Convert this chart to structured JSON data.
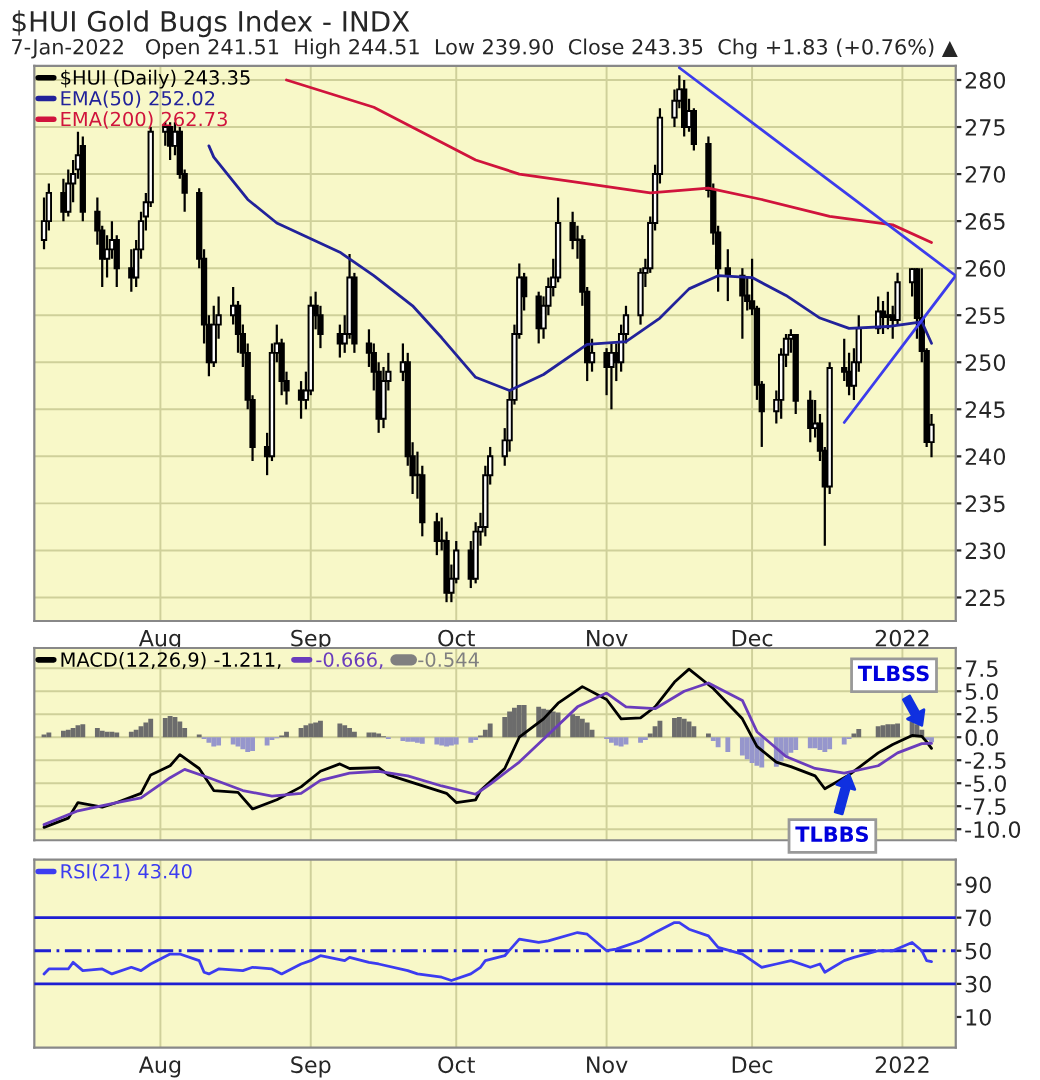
{
  "chart_data": [
    {
      "type": "candlestick",
      "title": "$HUI Gold Bugs Index - INDX",
      "subtitle": "7-Jan-2022   Open 241.51  High 244.51  Low 239.90  Close 243.35  Chg +1.83 (+0.76%) ▲",
      "x": [
        "2021-07-08",
        "2021-07-09",
        "2021-07-12",
        "2021-07-13",
        "2021-07-14",
        "2021-07-15",
        "2021-07-16",
        "2021-07-19",
        "2021-07-20",
        "2021-07-21",
        "2021-07-22",
        "2021-07-23",
        "2021-07-26",
        "2021-07-27",
        "2021-07-28",
        "2021-07-29",
        "2021-07-30",
        "2021-08-02",
        "2021-08-03",
        "2021-08-04",
        "2021-08-05",
        "2021-08-06",
        "2021-08-09",
        "2021-08-10",
        "2021-08-11",
        "2021-08-12",
        "2021-08-13",
        "2021-08-16",
        "2021-08-17",
        "2021-08-18",
        "2021-08-19",
        "2021-08-20",
        "2021-08-23",
        "2021-08-24",
        "2021-08-25",
        "2021-08-26",
        "2021-08-27",
        "2021-08-30",
        "2021-08-31",
        "2021-09-01",
        "2021-09-02",
        "2021-09-03",
        "2021-09-07",
        "2021-09-08",
        "2021-09-09",
        "2021-09-10",
        "2021-09-13",
        "2021-09-14",
        "2021-09-15",
        "2021-09-16",
        "2021-09-17",
        "2021-09-20",
        "2021-09-21",
        "2021-09-22",
        "2021-09-23",
        "2021-09-24",
        "2021-09-27",
        "2021-09-28",
        "2021-09-29",
        "2021-09-30",
        "2021-10-01",
        "2021-10-04",
        "2021-10-05",
        "2021-10-06",
        "2021-10-07",
        "2021-10-08",
        "2021-10-11",
        "2021-10-12",
        "2021-10-13",
        "2021-10-14",
        "2021-10-15",
        "2021-10-18",
        "2021-10-19",
        "2021-10-20",
        "2021-10-21",
        "2021-10-22",
        "2021-10-25",
        "2021-10-26",
        "2021-10-27",
        "2021-10-28",
        "2021-10-29",
        "2021-11-01",
        "2021-11-02",
        "2021-11-03",
        "2021-11-04",
        "2021-11-05",
        "2021-11-08",
        "2021-11-09",
        "2021-11-10",
        "2021-11-11",
        "2021-11-12",
        "2021-11-15",
        "2021-11-16",
        "2021-11-17",
        "2021-11-18",
        "2021-11-19",
        "2021-11-22",
        "2021-11-23",
        "2021-11-24",
        "2021-11-26",
        "2021-11-29",
        "2021-11-30",
        "2021-12-01",
        "2021-12-02",
        "2021-12-03",
        "2021-12-06",
        "2021-12-07",
        "2021-12-08",
        "2021-12-09",
        "2021-12-10",
        "2021-12-13",
        "2021-12-14",
        "2021-12-15",
        "2021-12-16",
        "2021-12-17",
        "2021-12-20",
        "2021-12-21",
        "2021-12-22",
        "2021-12-23",
        "2021-12-27",
        "2021-12-28",
        "2021-12-29",
        "2021-12-30",
        "2021-12-31",
        "2022-01-03",
        "2022-01-04",
        "2022-01-05",
        "2022-01-06",
        "2022-01-07"
      ],
      "series": [
        {
          "name": "$HUI (Daily) 243.35",
          "color": "#000000",
          "ohlc": [
            [
              263,
              267.5,
              262,
              265
            ],
            [
              265,
              269,
              264,
              268
            ],
            [
              268,
              269.5,
              265,
              266
            ],
            [
              266,
              270.5,
              265.5,
              269
            ],
            [
              269,
              271.5,
              267,
              270
            ],
            [
              270.5,
              274.5,
              269.5,
              272
            ],
            [
              273,
              274,
              265,
              266
            ],
            [
              266,
              267.5,
              262.5,
              264
            ],
            [
              264,
              264.5,
              258,
              261
            ],
            [
              261,
              263.5,
              259,
              262
            ],
            [
              262,
              265,
              261,
              263
            ],
            [
              263,
              263.5,
              258,
              260
            ],
            [
              260,
              262,
              257.5,
              259
            ],
            [
              259,
              263,
              258,
              262
            ],
            [
              262,
              266,
              261,
              265
            ],
            [
              265.5,
              268,
              264,
              267
            ],
            [
              267,
              275,
              266.5,
              274.5
            ],
            [
              274.5,
              275.5,
              273,
              275
            ],
            [
              275,
              275.5,
              271.5,
              273
            ],
            [
              273,
              275.5,
              272,
              274.5
            ],
            [
              274.5,
              275,
              269.5,
              270
            ],
            [
              270,
              270.5,
              266,
              268
            ],
            [
              268,
              268.5,
              260,
              261
            ],
            [
              261,
              262,
              252,
              254
            ],
            [
              254,
              255,
              248.5,
              250
            ],
            [
              250,
              256,
              249.5,
              254
            ],
            [
              254,
              257,
              252.5,
              255
            ],
            [
              255,
              258,
              254,
              256
            ],
            [
              256,
              256.5,
              251,
              253
            ],
            [
              253,
              254,
              249.5,
              251
            ],
            [
              251,
              252,
              245,
              246
            ],
            [
              246,
              246.5,
              239.5,
              241
            ],
            [
              241,
              242.5,
              238,
              240
            ],
            [
              240,
              252,
              239.5,
              251
            ],
            [
              251,
              254,
              250,
              252
            ],
            [
              252,
              252.5,
              246.5,
              248
            ],
            [
              248,
              249,
              245.5,
              247
            ],
            [
              247,
              248,
              244,
              246
            ],
            [
              246,
              249,
              245,
              247
            ],
            [
              247,
              257,
              246.5,
              256
            ],
            [
              256,
              257.5,
              253.5,
              255
            ],
            [
              255,
              256,
              251.5,
              253
            ],
            [
              253,
              254,
              250.5,
              252
            ],
            [
              252,
              255,
              251,
              253
            ],
            [
              253,
              261.5,
              252.5,
              259
            ],
            [
              259,
              259.5,
              251,
              252
            ],
            [
              252,
              253.5,
              249.5,
              251
            ],
            [
              251,
              252,
              247,
              249
            ],
            [
              249,
              250,
              242.5,
              244
            ],
            [
              244,
              249.5,
              243,
              248
            ],
            [
              248,
              251,
              247,
              249
            ],
            [
              249,
              252,
              248,
              250
            ],
            [
              250,
              251,
              239,
              240
            ],
            [
              240,
              241.5,
              236,
              238
            ],
            [
              238,
              240.5,
              235.5,
              238
            ],
            [
              238,
              239,
              231.5,
              233
            ],
            [
              233,
              234,
              229.5,
              231
            ],
            [
              231,
              233.5,
              230,
              231
            ],
            [
              231,
              232,
              224.5,
              225.5
            ],
            [
              225.5,
              228.5,
              224.5,
              227
            ],
            [
              227,
              231,
              226.5,
              230
            ],
            [
              230,
              231,
              226,
              227
            ],
            [
              227,
              233,
              226.5,
              232
            ],
            [
              232,
              234,
              230.5,
              232.5
            ],
            [
              232.5,
              239,
              231.5,
              238
            ],
            [
              238,
              241,
              237,
              240
            ],
            [
              240,
              243,
              239,
              241.7
            ],
            [
              241.7,
              247,
              240.5,
              246
            ],
            [
              246,
              254,
              245.5,
              253
            ],
            [
              253,
              260.5,
              252.5,
              259
            ],
            [
              259,
              259.5,
              255.5,
              257
            ],
            [
              257,
              257.5,
              252,
              253.6
            ],
            [
              253.6,
              257,
              252.5,
              256
            ],
            [
              256,
              259,
              255,
              258
            ],
            [
              258,
              261,
              257,
              259
            ],
            [
              259,
              267.5,
              258.5,
              264.8
            ],
            [
              264.8,
              266,
              262,
              263
            ],
            [
              263,
              264.5,
              261,
              263
            ],
            [
              263,
              263.5,
              256,
              257.5
            ],
            [
              257.5,
              258,
              248,
              250
            ],
            [
              250,
              252.5,
              249,
              251
            ],
            [
              251,
              251.5,
              246.5,
              249.5
            ],
            [
              249.5,
              252,
              245,
              251
            ],
            [
              251,
              252,
              248,
              250
            ],
            [
              250,
              254,
              249,
              253
            ],
            [
              253,
              256,
              252,
              255
            ],
            [
              255,
              260,
              254,
              259.5
            ],
            [
              259.5,
              261,
              258,
              260
            ],
            [
              260,
              265.5,
              259.5,
              264.8
            ],
            [
              264.8,
              271,
              264,
              270
            ],
            [
              270,
              277,
              269,
              276
            ],
            [
              276,
              279,
              275,
              277.8
            ],
            [
              277.8,
              280.5,
              277,
              279
            ],
            [
              279,
              280,
              274,
              275
            ],
            [
              275,
              278,
              274.5,
              276.7
            ],
            [
              276.7,
              277,
              272.5,
              273.2
            ],
            [
              273.2,
              274,
              267.5,
              268.3
            ],
            [
              268.3,
              269,
              262.5,
              263.8
            ],
            [
              263.8,
              264.5,
              257.5,
              260
            ],
            [
              260,
              262,
              256.5,
              259.2
            ],
            [
              259.2,
              260,
              252.5,
              257.1
            ],
            [
              257.1,
              259,
              255.5,
              256.5
            ],
            [
              256.5,
              261,
              255,
              255.7
            ],
            [
              255.7,
              256,
              246,
              247.6
            ],
            [
              247.6,
              248,
              241,
              244.8
            ],
            [
              244.8,
              247,
              243.5,
              246
            ],
            [
              246,
              251.5,
              244,
              250.8
            ],
            [
              250.8,
              253,
              249.5,
              252.5
            ],
            [
              252.5,
              253.5,
              251,
              252.9
            ],
            [
              252.9,
              253,
              244.5,
              245.9
            ],
            [
              245.9,
              247,
              241.5,
              243
            ],
            [
              243,
              246,
              242,
              243.5
            ],
            [
              243.5,
              244.5,
              239.5,
              240.6
            ],
            [
              240.6,
              241,
              230.5,
              236.8
            ],
            [
              236.8,
              250,
              236,
              249.4
            ],
            [
              249.4,
              252.5,
              248,
              249
            ],
            [
              249,
              251,
              246.5,
              247.5
            ],
            [
              247.5,
              251.5,
              246,
              250
            ],
            [
              250,
              255,
              249,
              253.6
            ],
            [
              253.6,
              257,
              253,
              255.4
            ],
            [
              255.4,
              256.5,
              253,
              254.8
            ],
            [
              254.8,
              257.5,
              253.5,
              255
            ],
            [
              255,
              256,
              252.5,
              254.5
            ],
            [
              254.5,
              259.5,
              254,
              258.5
            ],
            [
              258.5,
              260,
              257,
              259.9
            ],
            [
              259.9,
              260,
              252.5,
              254.7
            ],
            [
              254.7,
              260,
              250,
              251.2
            ],
            [
              251.2,
              251.5,
              241,
              241.52
            ],
            [
              241.51,
              244.51,
              239.9,
              243.35
            ]
          ]
        },
        {
          "type": "line",
          "name": "EMA(50) 252.02",
          "color": "#22229a",
          "x": [
            "2021-08-11",
            "2021-08-12",
            "2021-08-19",
            "2021-08-25",
            "2021-08-30",
            "2021-09-07",
            "2021-09-14",
            "2021-09-22",
            "2021-09-28",
            "2021-10-05",
            "2021-10-12",
            "2021-10-19",
            "2021-10-28",
            "2021-11-05",
            "2021-11-12",
            "2021-11-18",
            "2021-11-24",
            "2021-12-01",
            "2021-12-08",
            "2021-12-15",
            "2021-12-21",
            "2021-12-29",
            "2022-01-05",
            "2022-01-07"
          ],
          "values": [
            273.0,
            271.8,
            267.3,
            264.8,
            263.6,
            261.7,
            259.2,
            256,
            252.6,
            248.4,
            247,
            248.7,
            251.9,
            252.2,
            254.7,
            257.8,
            259.2,
            259,
            257.1,
            254.7,
            253.6,
            253.8,
            254.3,
            252.02
          ]
        },
        {
          "type": "line",
          "name": "EMA(200) 262.73",
          "color": "#d0143c",
          "x": [
            "2021-08-27",
            "2021-09-14",
            "2021-10-05",
            "2021-10-14",
            "2021-10-25",
            "2021-11-10",
            "2021-11-22",
            "2021-12-03",
            "2021-12-17",
            "2021-12-30",
            "2022-01-07"
          ],
          "values": [
            280,
            277.1,
            271.5,
            270,
            269.2,
            268,
            268.5,
            267.3,
            265.5,
            264.6,
            262.73
          ]
        },
        {
          "type": "line",
          "color": "#3c3cec",
          "x": [
            "2021-11-16",
            "2022-01-12"
          ],
          "values": [
            281.3,
            259.2
          ]
        },
        {
          "type": "line",
          "color": "#3c3cec",
          "x": [
            "2021-12-20",
            "2022-01-12"
          ],
          "values": [
            243.6,
            259.2
          ]
        }
      ],
      "xlim": [
        "2021-07-06",
        "2022-01-12"
      ],
      "xticks": [
        {
          "value": "2021-08-01",
          "label": "Aug"
        },
        {
          "value": "2021-09-01",
          "label": "Sep"
        },
        {
          "value": "2021-10-01",
          "label": "Oct"
        },
        {
          "value": "2021-11-01",
          "label": "Nov"
        },
        {
          "value": "2021-12-01",
          "label": "Dec"
        },
        {
          "value": "2022-01-01",
          "label": "2022"
        }
      ],
      "ylim": [
        222.5,
        281.5
      ],
      "yticks": [
        225,
        230,
        235,
        240,
        245,
        250,
        255,
        260,
        265,
        270,
        275,
        280
      ],
      "grid": true,
      "legend": "top left"
    },
    {
      "type": "line",
      "x": [
        "2021-07-08",
        "2021-07-09",
        "2021-07-12",
        "2021-07-13",
        "2021-07-14",
        "2021-07-15",
        "2021-07-16",
        "2021-07-19",
        "2021-07-20",
        "2021-07-21",
        "2021-07-22",
        "2021-07-23",
        "2021-07-26",
        "2021-07-27",
        "2021-07-28",
        "2021-07-29",
        "2021-07-30",
        "2021-08-02",
        "2021-08-03",
        "2021-08-04",
        "2021-08-05",
        "2021-08-06",
        "2021-08-09",
        "2021-08-10",
        "2021-08-11",
        "2021-08-12",
        "2021-08-13",
        "2021-08-16",
        "2021-08-17",
        "2021-08-18",
        "2021-08-19",
        "2021-08-20",
        "2021-08-23",
        "2021-08-24",
        "2021-08-25",
        "2021-08-26",
        "2021-08-27",
        "2021-08-30",
        "2021-08-31",
        "2021-09-01",
        "2021-09-02",
        "2021-09-03",
        "2021-09-07",
        "2021-09-08",
        "2021-09-09",
        "2021-09-10",
        "2021-09-13",
        "2021-09-14",
        "2021-09-15",
        "2021-09-16",
        "2021-09-17",
        "2021-09-20",
        "2021-09-21",
        "2021-09-22",
        "2021-09-23",
        "2021-09-24",
        "2021-09-27",
        "2021-09-28",
        "2021-09-29",
        "2021-09-30",
        "2021-10-01",
        "2021-10-04",
        "2021-10-05",
        "2021-10-06",
        "2021-10-07",
        "2021-10-08",
        "2021-10-11",
        "2021-10-12",
        "2021-10-13",
        "2021-10-14",
        "2021-10-15",
        "2021-10-18",
        "2021-10-19",
        "2021-10-20",
        "2021-10-21",
        "2021-10-22",
        "2021-10-25",
        "2021-10-26",
        "2021-10-27",
        "2021-10-28",
        "2021-10-29",
        "2021-11-01",
        "2021-11-02",
        "2021-11-03",
        "2021-11-04",
        "2021-11-05",
        "2021-11-08",
        "2021-11-09",
        "2021-11-10",
        "2021-11-11",
        "2021-11-12",
        "2021-11-15",
        "2021-11-16",
        "2021-11-17",
        "2021-11-18",
        "2021-11-19",
        "2021-11-22",
        "2021-11-23",
        "2021-11-24",
        "2021-11-26",
        "2021-11-29",
        "2021-11-30",
        "2021-12-01",
        "2021-12-02",
        "2021-12-03",
        "2021-12-06",
        "2021-12-07",
        "2021-12-08",
        "2021-12-09",
        "2021-12-10",
        "2021-12-13",
        "2021-12-14",
        "2021-12-15",
        "2021-12-16",
        "2021-12-17",
        "2021-12-20",
        "2021-12-21",
        "2021-12-22",
        "2021-12-23",
        "2021-12-27",
        "2021-12-28",
        "2021-12-29",
        "2021-12-30",
        "2021-12-31",
        "2022-01-03",
        "2022-01-04",
        "2022-01-05",
        "2022-01-06",
        "2022-01-07"
      ],
      "series": [
        {
          "type": "bar",
          "name": "-0.544",
          "color": "#808080",
          "values": [
            0.3,
            0.5,
            0.7,
            0.8,
            1.0,
            1.3,
            1.4,
            1.0,
            0.7,
            0.6,
            0.6,
            0.5,
            0.6,
            0.8,
            1.2,
            1.6,
            2.0,
            2.1,
            2.3,
            2.2,
            1.7,
            1.0,
            0.3,
            -0.2,
            -0.6,
            -1.0,
            -0.9,
            -0.8,
            -1.0,
            -1.3,
            -1.6,
            -1.5,
            -0.9,
            -0.3,
            -0.1,
            0.2,
            0.6,
            1.0,
            1.3,
            1.5,
            1.6,
            1.8,
            1.5,
            1.3,
            1.0,
            0.6,
            0.5,
            0.5,
            0.4,
            0.1,
            -0.2,
            -0.4,
            -0.5,
            -0.5,
            -0.6,
            -0.7,
            -0.8,
            -0.9,
            -1.0,
            -0.9,
            -0.8,
            -0.6,
            -0.3,
            0.2,
            0.8,
            1.5,
            2.2,
            2.8,
            3.2,
            3.5,
            3.5,
            3.3,
            3.1,
            3.0,
            2.8,
            2.7,
            2.5,
            2.3,
            2.0,
            1.6,
            0.8,
            -0.2,
            -0.6,
            -0.9,
            -1.0,
            -0.8,
            -0.6,
            -0.3,
            0.4,
            1.2,
            1.8,
            2.1,
            2.2,
            2.0,
            1.7,
            1.2,
            0.4,
            -0.4,
            -1.1,
            -1.6,
            -2.0,
            -2.4,
            -2.8,
            -3.1,
            -3.3,
            -3.2,
            -2.6,
            -2.1,
            -1.7,
            -1.4,
            -1.2,
            -1.2,
            -1.4,
            -1.6,
            -1.3,
            -0.8,
            -0.2,
            0.4,
            0.9,
            1.2,
            1.3,
            1.4,
            1.4,
            1.5,
            1.7,
            1.4,
            0.8,
            -0.3,
            -0.544
          ],
          "colors": [
            "#6c6c6c",
            "#6c6c6c",
            "#6c6c6c",
            "#6c6c6c",
            "#6c6c6c",
            "#6c6c6c",
            "#6c6c6c",
            "#6c6c6c",
            "#6c6c6c",
            "#6c6c6c",
            "#6c6c6c",
            "#6c6c6c",
            "#6c6c6c",
            "#6c6c6c",
            "#6c6c6c",
            "#6c6c6c",
            "#6c6c6c",
            "#6c6c6c",
            "#6c6c6c",
            "#6c6c6c",
            "#6c6c6c",
            "#6c6c6c",
            "#6c6c6c",
            "#9696cc",
            "#9696cc",
            "#9696cc",
            "#9696cc",
            "#9696cc",
            "#9696cc",
            "#9696cc",
            "#9696cc",
            "#9696cc",
            "#9696cc",
            "#9696cc",
            "#9696cc",
            "#6c6c6c",
            "#6c6c6c",
            "#6c6c6c",
            "#6c6c6c",
            "#6c6c6c",
            "#6c6c6c",
            "#6c6c6c",
            "#6c6c6c",
            "#6c6c6c",
            "#6c6c6c",
            "#6c6c6c",
            "#6c6c6c",
            "#6c6c6c",
            "#6c6c6c",
            "#6c6c6c",
            "#9696cc",
            "#9696cc",
            "#9696cc",
            "#9696cc",
            "#9696cc",
            "#9696cc",
            "#9696cc",
            "#9696cc",
            "#9696cc",
            "#9696cc",
            "#9696cc",
            "#9696cc",
            "#9696cc",
            "#6c6c6c",
            "#6c6c6c",
            "#6c6c6c",
            "#6c6c6c",
            "#6c6c6c",
            "#6c6c6c",
            "#6c6c6c",
            "#6c6c6c",
            "#6c6c6c",
            "#6c6c6c",
            "#6c6c6c",
            "#6c6c6c",
            "#6c6c6c",
            "#6c6c6c",
            "#6c6c6c",
            "#6c6c6c",
            "#6c6c6c",
            "#6c6c6c",
            "#9696cc",
            "#9696cc",
            "#9696cc",
            "#9696cc",
            "#9696cc",
            "#9696cc",
            "#9696cc",
            "#6c6c6c",
            "#6c6c6c",
            "#6c6c6c",
            "#6c6c6c",
            "#6c6c6c",
            "#6c6c6c",
            "#6c6c6c",
            "#6c6c6c",
            "#6c6c6c",
            "#9696cc",
            "#9696cc",
            "#9696cc",
            "#9696cc",
            "#9696cc",
            "#9696cc",
            "#9696cc",
            "#9696cc",
            "#9696cc",
            "#9696cc",
            "#9696cc",
            "#9696cc",
            "#9696cc",
            "#9696cc",
            "#9696cc",
            "#9696cc",
            "#9696cc",
            "#9696cc",
            "#9696cc",
            "#9696cc",
            "#6c6c6c",
            "#6c6c6c",
            "#6c6c6c",
            "#6c6c6c",
            "#6c6c6c",
            "#6c6c6c",
            "#6c6c6c",
            "#6c6c6c",
            "#6c6c6c",
            "#6c6c6c",
            "#9696cc",
            "#9696cc"
          ]
        },
        {
          "name": "MACD(12,26,9) -1.211,",
          "color": "#000000",
          "x": [
            "2021-07-08",
            "2021-07-13",
            "2021-07-15",
            "2021-07-20",
            "2021-07-23",
            "2021-07-28",
            "2021-07-30",
            "2021-08-03",
            "2021-08-05",
            "2021-08-09",
            "2021-08-12",
            "2021-08-17",
            "2021-08-20",
            "2021-08-25",
            "2021-08-30",
            "2021-09-03",
            "2021-09-07",
            "2021-09-09",
            "2021-09-15",
            "2021-09-17",
            "2021-09-23",
            "2021-09-29",
            "2021-10-01",
            "2021-10-05",
            "2021-10-06",
            "2021-10-11",
            "2021-10-14",
            "2021-10-19",
            "2021-10-22",
            "2021-10-27",
            "2021-11-01",
            "2021-11-04",
            "2021-11-08",
            "2021-11-11",
            "2021-11-15",
            "2021-11-18",
            "2021-11-23",
            "2021-11-29",
            "2021-12-02",
            "2021-12-06",
            "2021-12-09",
            "2021-12-14",
            "2021-12-16",
            "2021-12-21",
            "2021-12-27",
            "2021-12-30",
            "2022-01-03",
            "2022-01-05",
            "2022-01-06",
            "2022-01-07"
          ],
          "values": [
            -9.8,
            -8.8,
            -7.1,
            -7.6,
            -7.1,
            -6.1,
            -4.1,
            -3.1,
            -1.9,
            -3.4,
            -5.8,
            -6.0,
            -7.8,
            -6.8,
            -5.4,
            -3.7,
            -2.9,
            -3.4,
            -3.3,
            -4.1,
            -5.1,
            -6.1,
            -7.1,
            -6.8,
            -5.8,
            -3.4,
            0.0,
            2.0,
            3.7,
            5.5,
            4.1,
            2.0,
            2.1,
            3.3,
            6.0,
            7.4,
            5.3,
            2.0,
            -1.0,
            -2.7,
            -3.2,
            -4.2,
            -5.6,
            -4.1,
            -1.7,
            -0.8,
            0.2,
            0.1,
            -0.5,
            -1.211
          ]
        },
        {
          "name": "-0.666,",
          "color": "#6a3cbc",
          "x": [
            "2021-07-08",
            "2021-07-15",
            "2021-07-23",
            "2021-07-28",
            "2021-08-03",
            "2021-08-06",
            "2021-08-11",
            "2021-08-18",
            "2021-08-24",
            "2021-08-30",
            "2021-09-03",
            "2021-09-09",
            "2021-09-15",
            "2021-09-21",
            "2021-09-28",
            "2021-10-05",
            "2021-10-08",
            "2021-10-14",
            "2021-10-20",
            "2021-10-26",
            "2021-11-01",
            "2021-11-05",
            "2021-11-11",
            "2021-11-17",
            "2021-11-22",
            "2021-11-29",
            "2021-12-02",
            "2021-12-08",
            "2021-12-14",
            "2021-12-20",
            "2021-12-27",
            "2021-12-31",
            "2022-01-05",
            "2022-01-07"
          ],
          "values": [
            -9.5,
            -8.0,
            -7.1,
            -6.6,
            -4.4,
            -3.5,
            -4.4,
            -5.8,
            -6.4,
            -6.1,
            -4.7,
            -3.9,
            -3.7,
            -4.2,
            -5.3,
            -6.2,
            -5.1,
            -2.7,
            0.3,
            3.3,
            4.8,
            3.3,
            3.1,
            5.0,
            5.9,
            4.0,
            0.6,
            -2.1,
            -3.4,
            -3.9,
            -3.1,
            -1.7,
            -0.7,
            -0.666
          ]
        }
      ],
      "annotations": [
        {
          "text": "TLBSS",
          "x": "2022-01-05",
          "y": 1.3
        },
        {
          "text": "TLBBS",
          "x": "2021-12-21",
          "y": -4.1
        }
      ],
      "xlim": [
        "2021-07-06",
        "2022-01-12"
      ],
      "xticks": [
        {
          "value": "2021-08-01",
          "label": null
        },
        {
          "value": "2021-09-01",
          "label": null
        },
        {
          "value": "2021-10-01",
          "label": null
        },
        {
          "value": "2021-11-01",
          "label": null
        },
        {
          "value": "2021-12-01",
          "label": null
        },
        {
          "value": "2022-01-01",
          "label": null
        }
      ],
      "ylim": [
        -11.2,
        9.7
      ],
      "yticks": [
        {
          "value": 7.5,
          "label": "7.5"
        },
        {
          "value": 5,
          "label": "5.0"
        },
        {
          "value": 2.5,
          "label": "2.5"
        },
        {
          "value": 0,
          "label": "0.0"
        },
        {
          "value": -2.5,
          "label": "-2.5"
        },
        {
          "value": -5,
          "label": "-5.0"
        },
        {
          "value": -7.5,
          "label": "-7.5"
        },
        {
          "value": -10,
          "label": "-10.0"
        }
      ],
      "tick_labels": "y",
      "grid": true,
      "legend": "top left"
    },
    {
      "type": "line",
      "series": [
        {
          "name": "RSI(21) 43.40",
          "color": "#3c3cf0",
          "x": [
            "2021-07-08",
            "2021-07-09",
            "2021-07-13",
            "2021-07-14",
            "2021-07-16",
            "2021-07-20",
            "2021-07-22",
            "2021-07-26",
            "2021-07-28",
            "2021-07-30",
            "2021-08-03",
            "2021-08-05",
            "2021-08-09",
            "2021-08-10",
            "2021-08-11",
            "2021-08-13",
            "2021-08-18",
            "2021-08-20",
            "2021-08-24",
            "2021-08-26",
            "2021-08-30",
            "2021-09-01",
            "2021-09-03",
            "2021-09-08",
            "2021-09-09",
            "2021-09-13",
            "2021-09-15",
            "2021-09-21",
            "2021-09-23",
            "2021-09-28",
            "2021-09-30",
            "2021-10-04",
            "2021-10-06",
            "2021-10-07",
            "2021-10-11",
            "2021-10-14",
            "2021-10-18",
            "2021-10-20",
            "2021-10-26",
            "2021-10-28",
            "2021-11-01",
            "2021-11-03",
            "2021-11-04",
            "2021-11-08",
            "2021-11-11",
            "2021-11-15",
            "2021-11-16",
            "2021-11-18",
            "2021-11-22",
            "2021-11-24",
            "2021-11-29",
            "2021-11-30",
            "2021-12-03",
            "2021-12-06",
            "2021-12-09",
            "2021-12-13",
            "2021-12-15",
            "2021-12-16",
            "2021-12-20",
            "2021-12-22",
            "2021-12-27",
            "2021-12-29",
            "2021-12-30",
            "2022-01-03",
            "2022-01-05",
            "2022-01-06",
            "2022-01-07"
          ],
          "values": [
            36,
            39,
            39,
            43,
            38,
            39,
            36,
            40,
            38,
            42,
            48,
            48,
            44,
            37,
            36,
            39,
            38,
            40,
            39,
            36,
            42,
            44,
            47,
            44,
            46,
            43,
            42,
            38,
            36,
            34,
            32,
            36,
            40,
            44,
            47,
            57,
            55,
            56,
            61,
            60,
            50,
            51,
            52,
            56,
            61,
            67,
            67,
            63,
            59,
            52,
            48,
            46,
            40,
            42,
            44,
            40,
            42,
            37,
            44,
            46,
            50,
            50,
            50,
            55,
            50,
            44,
            43.4
          ]
        }
      ],
      "ref_lines": [
        {
          "axis": "y",
          "value": 70,
          "color": "#1e1ed2",
          "line_style": "solid"
        },
        {
          "axis": "y",
          "value": 50,
          "color": "#1e1ed2",
          "line_style": "dashed"
        },
        {
          "axis": "y",
          "value": 30,
          "color": "#1e1ed2",
          "line_style": "solid"
        }
      ],
      "xlim": [
        "2021-07-06",
        "2022-01-12"
      ],
      "xticks": [
        {
          "value": "2021-08-01",
          "label": "Aug"
        },
        {
          "value": "2021-09-01",
          "label": "Sep"
        },
        {
          "value": "2021-10-01",
          "label": "Oct"
        },
        {
          "value": "2021-11-01",
          "label": "Nov"
        },
        {
          "value": "2021-12-01",
          "label": "Dec"
        },
        {
          "value": "2022-01-01",
          "label": "2022"
        }
      ],
      "ylim": [
        -8.5,
        105
      ],
      "yticks": [
        10,
        30,
        50,
        70,
        90
      ],
      "grid": "x",
      "legend": "top left"
    }
  ]
}
